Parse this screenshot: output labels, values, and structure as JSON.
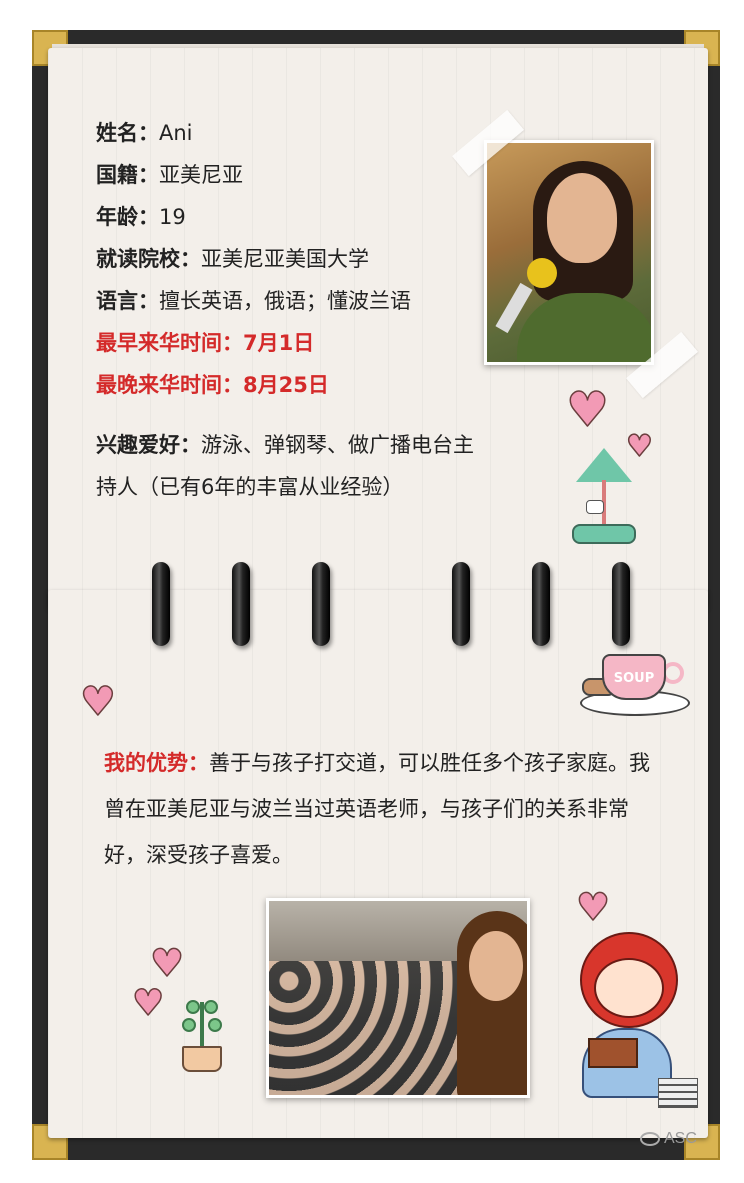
{
  "profile": {
    "name": {
      "label": "姓名：",
      "value": "Ani"
    },
    "nationality": {
      "label": "国籍：",
      "value": "亚美尼亚"
    },
    "age": {
      "label": "年龄：",
      "value": "19"
    },
    "school": {
      "label": "就读院校：",
      "value": "亚美尼亚美国大学"
    },
    "language": {
      "label": "语言：",
      "value": "擅长英语，俄语；懂波兰语"
    },
    "earliest_arrival": "最早来华时间：7月1日",
    "latest_arrival": "最晚来华时间：8月25日",
    "hobbies": {
      "label": "兴趣爱好：",
      "value": "游泳、弹钢琴、做广播电台主持人（已有6年的丰富从业经验）"
    }
  },
  "advantage": {
    "label": "我的优势：",
    "text": "善于与孩子打交道，可以胜任多个孩子家庭。我曾在亚美尼亚与波兰当过英语老师，与孩子们的关系非常好，深受孩子喜爱。"
  },
  "decor": {
    "soup_label": "SOUP",
    "watermark": "ASC",
    "heart_color": "#f29ab5",
    "highlight_color": "#d42a2a"
  }
}
